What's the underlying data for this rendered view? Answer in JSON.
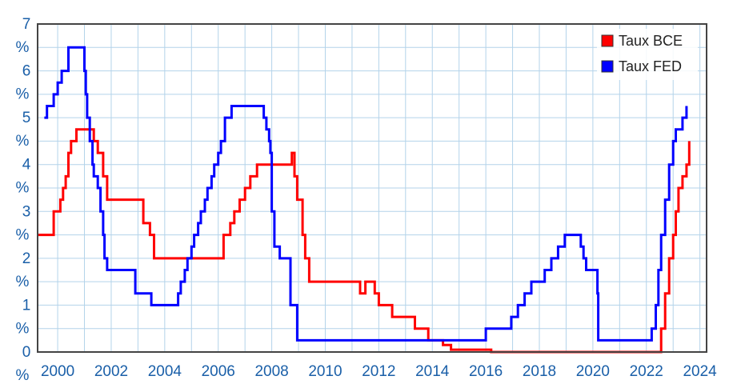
{
  "chart_data": {
    "type": "line",
    "x_ticks": [
      "2000",
      "2002",
      "2004",
      "2006",
      "2008",
      "2010",
      "2012",
      "2014",
      "2016",
      "2018",
      "2020",
      "2022",
      "2024"
    ],
    "y_ticks": [
      {
        "value": 0,
        "label": "0",
        "unit": "%"
      },
      {
        "value": 1,
        "label": "1",
        "unit": "%"
      },
      {
        "value": 2,
        "label": "2",
        "unit": "%"
      },
      {
        "value": 3,
        "label": "3",
        "unit": "%"
      },
      {
        "value": 4,
        "label": "4",
        "unit": "%"
      },
      {
        "value": 5,
        "label": "5",
        "unit": "%"
      },
      {
        "value": 6,
        "label": "6",
        "unit": "%"
      },
      {
        "value": 7,
        "label": "7",
        "unit": "%"
      }
    ],
    "xlim": [
      1999.25,
      2024.25
    ],
    "ylim": [
      0,
      7
    ],
    "grid": true,
    "legend_position": "top-right",
    "colors": {
      "grid": "#b3d3ea",
      "tick_text": "#1a5fa8",
      "frame": "#444444"
    },
    "series": [
      {
        "name": "Taux BCE",
        "color": "#ff0000",
        "x": [
          1999.25,
          1999.8,
          1999.85,
          2000.1,
          2000.2,
          2000.3,
          2000.4,
          2000.5,
          2000.7,
          2000.8,
          2001.35,
          2001.5,
          2001.7,
          2001.85,
          2002.95,
          2003.2,
          2003.45,
          2003.6,
          2005.9,
          2006.2,
          2006.45,
          2006.6,
          2006.8,
          2007.0,
          2007.2,
          2007.45,
          2008.5,
          2008.75,
          2008.85,
          2008.95,
          2009.15,
          2009.25,
          2009.4,
          2011.3,
          2011.5,
          2011.85,
          2012.0,
          2012.5,
          2013.35,
          2013.85,
          2014.4,
          2014.7,
          2016.2,
          2022.5,
          2022.55,
          2022.7,
          2022.85,
          2023.0,
          2023.1,
          2023.2,
          2023.35,
          2023.5,
          2023.6
        ],
        "y": [
          2.5,
          2.5,
          3.0,
          3.25,
          3.5,
          3.75,
          4.25,
          4.5,
          4.75,
          4.75,
          4.5,
          4.25,
          3.75,
          3.25,
          3.25,
          2.75,
          2.5,
          2.0,
          2.0,
          2.5,
          2.75,
          3.0,
          3.25,
          3.5,
          3.75,
          4.0,
          4.0,
          4.25,
          3.75,
          3.25,
          2.5,
          2.0,
          1.5,
          1.25,
          1.5,
          1.25,
          1.0,
          0.75,
          0.5,
          0.25,
          0.15,
          0.05,
          0.0,
          0.0,
          0.5,
          1.25,
          2.0,
          2.5,
          3.0,
          3.5,
          3.75,
          4.0,
          4.5
        ]
      },
      {
        "name": "Taux FED",
        "color": "#0000ff",
        "x": [
          1999.5,
          1999.6,
          1999.85,
          2000.0,
          2000.15,
          2000.4,
          2001.0,
          2001.05,
          2001.1,
          2001.2,
          2001.3,
          2001.35,
          2001.5,
          2001.6,
          2001.7,
          2001.75,
          2001.85,
          2001.95,
          2002.9,
          2003.5,
          2004.5,
          2004.6,
          2004.75,
          2004.85,
          2005.0,
          2005.1,
          2005.25,
          2005.35,
          2005.5,
          2005.6,
          2005.75,
          2005.85,
          2006.0,
          2006.1,
          2006.25,
          2006.5,
          2007.7,
          2007.8,
          2007.9,
          2007.95,
          2008.0,
          2008.1,
          2008.3,
          2008.7,
          2008.95,
          2016.0,
          2016.95,
          2017.2,
          2017.45,
          2017.7,
          2018.2,
          2018.45,
          2018.7,
          2018.95,
          2019.55,
          2019.65,
          2019.75,
          2020.17,
          2020.2,
          2022.2,
          2022.35,
          2022.45,
          2022.55,
          2022.7,
          2022.85,
          2023.0,
          2023.1,
          2023.35,
          2023.5
        ],
        "y": [
          5.0,
          5.25,
          5.5,
          5.75,
          6.0,
          6.5,
          6.0,
          5.5,
          5.0,
          4.5,
          4.0,
          3.75,
          3.5,
          3.0,
          2.5,
          2.0,
          1.75,
          1.75,
          1.25,
          1.0,
          1.25,
          1.5,
          1.75,
          2.0,
          2.25,
          2.5,
          2.75,
          3.0,
          3.25,
          3.5,
          3.75,
          4.0,
          4.25,
          4.5,
          5.0,
          5.25,
          5.0,
          4.75,
          4.5,
          4.25,
          3.0,
          2.25,
          2.0,
          1.0,
          0.25,
          0.5,
          0.75,
          1.0,
          1.25,
          1.5,
          1.75,
          2.0,
          2.25,
          2.5,
          2.25,
          2.0,
          1.75,
          1.25,
          0.25,
          0.5,
          1.0,
          1.75,
          2.5,
          3.25,
          4.0,
          4.5,
          4.75,
          5.0,
          5.25
        ]
      }
    ]
  }
}
